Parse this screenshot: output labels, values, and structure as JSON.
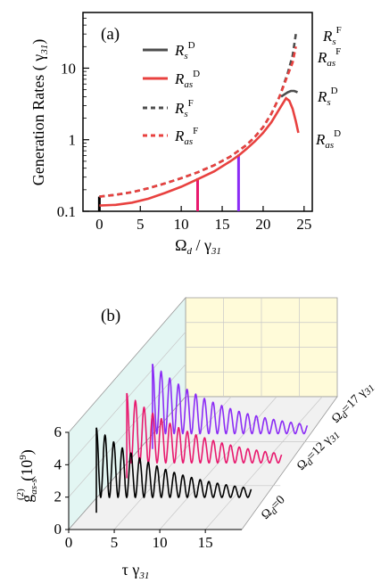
{
  "chart_data": [
    {
      "panel_label": "(a)",
      "type": "line",
      "xlabel": "Ω_d / γ31",
      "ylabel": "Generation Rates ( γ31)",
      "y_scale": "log",
      "xlim": [
        -2,
        26
      ],
      "ylim": [
        0.1,
        60
      ],
      "xticks": [
        "0",
        "5",
        "10",
        "15",
        "20",
        "25"
      ],
      "yticks": [
        "0.1",
        "1",
        "10"
      ],
      "legend_position": "top-left",
      "series": [
        {
          "name": "R_s^D",
          "color": "#4d4d4d",
          "dash": "solid",
          "x": [
            22.2,
            22.6,
            23.0,
            23.4,
            23.8,
            24.2
          ],
          "y": [
            4.0,
            4.3,
            4.6,
            4.8,
            4.8,
            4.6
          ]
        },
        {
          "name": "R_as^D",
          "color": "#e8413f",
          "dash": "solid",
          "x": [
            0,
            2,
            4,
            6,
            8,
            10,
            12,
            14,
            16,
            17,
            18,
            19,
            20,
            21,
            22,
            22.8,
            23.2,
            23.6,
            24.0,
            24.3
          ],
          "y": [
            0.12,
            0.123,
            0.132,
            0.15,
            0.18,
            0.22,
            0.28,
            0.36,
            0.5,
            0.6,
            0.75,
            0.95,
            1.25,
            1.75,
            2.7,
            3.8,
            3.5,
            2.7,
            1.8,
            1.25
          ]
        },
        {
          "name": "R_s^F",
          "color": "#4d4d4d",
          "dash": "dashed",
          "x": [
            0,
            2,
            4,
            6,
            8,
            10,
            12,
            14,
            16,
            18,
            19,
            20,
            21,
            22,
            23,
            23.6,
            24.0
          ],
          "y": [
            0.16,
            0.17,
            0.185,
            0.21,
            0.245,
            0.29,
            0.35,
            0.44,
            0.58,
            0.85,
            1.1,
            1.5,
            2.3,
            4.0,
            8.5,
            15,
            30
          ]
        },
        {
          "name": "R_as^F",
          "color": "#e8413f",
          "dash": "dashed",
          "x": [
            0,
            2,
            4,
            6,
            8,
            10,
            12,
            14,
            16,
            18,
            19,
            20,
            21,
            22,
            23,
            23.6,
            24.0
          ],
          "y": [
            0.16,
            0.17,
            0.185,
            0.21,
            0.245,
            0.29,
            0.35,
            0.44,
            0.58,
            0.85,
            1.1,
            1.5,
            2.3,
            4.0,
            8.0,
            12,
            20
          ]
        }
      ],
      "markers": [
        {
          "x": 0,
          "color": "#000000",
          "y_top": 0.16
        },
        {
          "x": 12,
          "color": "#e8196e",
          "y_top": 0.29
        },
        {
          "x": 17,
          "color": "#8b2cf5",
          "y_top": 0.62
        }
      ],
      "end_labels": [
        {
          "text": "R_s^F"
        },
        {
          "text": "R_as^F"
        },
        {
          "text": "R_s^D"
        },
        {
          "text": "R_as^D"
        }
      ]
    },
    {
      "panel_label": "(b)",
      "type": "line",
      "projection": "3d-waterfall",
      "xlabel": "τ γ31",
      "zlabel": "g^(2)_as-s (10^9)",
      "xlim": [
        0,
        19
      ],
      "zlim": [
        0,
        6
      ],
      "xticks": [
        "0",
        "5",
        "10",
        "15"
      ],
      "zticks": [
        "0",
        "2",
        "4",
        "6"
      ],
      "depth_labels": [
        "Ω_d=0",
        "Ω_d=12 γ31",
        "Ω_d=17 γ31"
      ],
      "series": [
        {
          "name": "Ω_d=0",
          "color": "#000000",
          "x_start": 1.5,
          "x_end": 18.5,
          "period": 0.95,
          "peak_start": 5.3,
          "peak_decay": 0.12,
          "baseline": 1.0
        },
        {
          "name": "Ω_d=12 γ31",
          "color": "#e8196e",
          "x_start": 1.5,
          "x_end": 18.5,
          "period": 0.95,
          "peak_start": 5.3,
          "peak_decay": 0.12,
          "baseline": 1.0
        },
        {
          "name": "Ω_d=17 γ31",
          "color": "#8b2cf5",
          "x_start": 1.5,
          "x_end": 18.5,
          "period": 0.95,
          "peak_start": 5.3,
          "peak_decay": 0.12,
          "baseline": 1.0
        }
      ]
    }
  ]
}
